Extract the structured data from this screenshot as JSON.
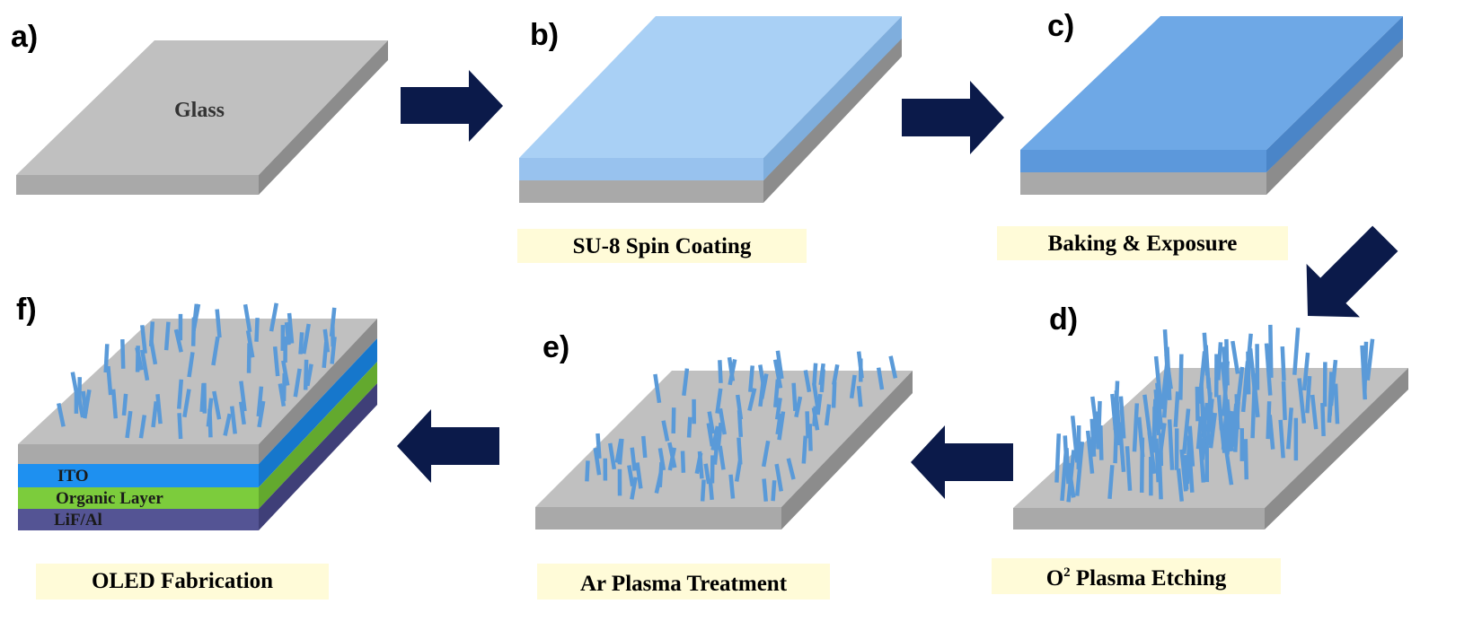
{
  "steps": {
    "a": {
      "label": "a)",
      "surface_text": "Glass"
    },
    "b": {
      "label": "b)",
      "caption": "SU-8 Spin Coating"
    },
    "c": {
      "label": "c)",
      "caption": "Baking & Exposure"
    },
    "d": {
      "label": "d)",
      "caption_prefix": "O",
      "caption_sup": "2",
      "caption_rest": " Plasma Etching"
    },
    "e": {
      "label": "e)",
      "caption": "Ar Plasma Treatment"
    },
    "f": {
      "label": "f)",
      "caption": "OLED Fabrication",
      "layers": {
        "ito": "ITO",
        "organic": "Organic Layer",
        "cathode": "LiF/Al"
      }
    }
  },
  "colors": {
    "glass_top": "#c0c0c0",
    "glass_front": "#a9a9a9",
    "glass_side": "#8c8c8c",
    "su8_light": "#a9d0f5",
    "su8_exposed": "#6ea8e6",
    "ito": "#1e90f0",
    "organic": "#7ccc3c",
    "cathode": "#545494",
    "pillar": "#5a9ad8",
    "arrow": "#0b1a4a",
    "caption_bg": "#fffbd8"
  }
}
